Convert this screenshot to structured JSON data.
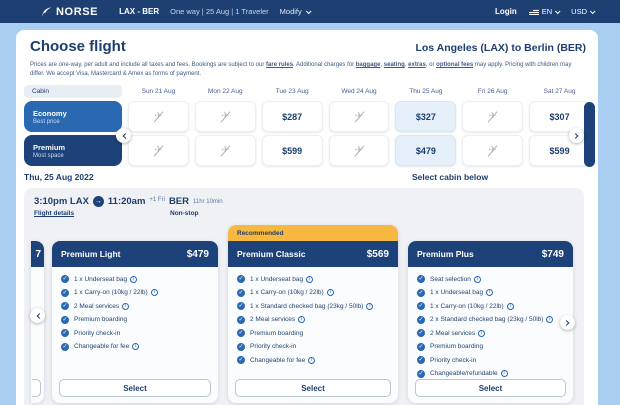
{
  "colors": {
    "navy": "#1e3f72",
    "header_navy": "#1c4279",
    "economy_blue": "#2a68b2",
    "page_blue": "#a9cef2",
    "selected_cell": "#e5f0fb",
    "recommended_yellow": "#f7b841",
    "container_gray": "#f0f1f4",
    "text_navy": "#1d3e6f"
  },
  "icons": {
    "plane": "✈",
    "arrow": "→",
    "check": "✓",
    "info": "i",
    "brand": "norse-bird"
  },
  "navbar": {
    "brand": "NORSE",
    "route": "LAX - BER",
    "trip_summary": "One way | 25 Aug | 1 Traveler",
    "modify_label": "Modify",
    "login_label": "Login",
    "language": "EN",
    "currency": "USD"
  },
  "header": {
    "title": "Choose flight",
    "route_title": "Los Angeles (LAX) to Berlin (BER)",
    "disclaimer": [
      {
        "t": "Prices are one-way, per adult and include all taxes and fees. Bookings are subject to our ",
        "link": false
      },
      {
        "t": "fare rules",
        "link": true
      },
      {
        "t": ". Additional charges for ",
        "link": false
      },
      {
        "t": "baggage",
        "link": true
      },
      {
        "t": ", ",
        "link": false
      },
      {
        "t": "seating",
        "link": true
      },
      {
        "t": ", ",
        "link": false
      },
      {
        "t": "extras",
        "link": true
      },
      {
        "t": ", or ",
        "link": false
      },
      {
        "t": "optional fees",
        "link": true
      },
      {
        "t": " may apply. Pricing with children may differ. We accept Visa, Mastercard & Amex as forms of payment.",
        "link": false
      }
    ]
  },
  "calendar": {
    "cabin_header": "Cabin",
    "days": [
      "Sun 21 Aug",
      "Mon 22 Aug",
      "Tue 23 Aug",
      "Wed 24 Aug",
      "Thu 25 Aug",
      "Fri 26 Aug",
      "Sat 27 Aug"
    ],
    "rows": [
      {
        "cabin": "Economy",
        "subtitle": "Best price",
        "cells": [
          null,
          null,
          "$287",
          null,
          "$327",
          null,
          "$307"
        ],
        "selected_index": 4
      },
      {
        "cabin": "Premium",
        "subtitle": "Most space",
        "cells": [
          null,
          null,
          "$599",
          null,
          "$479",
          null,
          "$599"
        ],
        "selected_index": 4
      }
    ]
  },
  "selection": {
    "date_heading": "Thu, 25 Aug 2022",
    "select_cabin_label": "Select cabin below"
  },
  "flight": {
    "depart": "3:10pm LAX",
    "arrive_time": "11:20am",
    "arrive_suffix": "+1 Fri",
    "arrive_airport": "BER",
    "duration": "11hr 10min",
    "details_link": "Flight details",
    "stops": "Non-stop"
  },
  "fares": {
    "recommended_label": "Recommended",
    "select_label": "Select",
    "partial_price": "7",
    "cards": [
      {
        "name": "Premium Light",
        "price": "$479",
        "recommended": false,
        "features": [
          {
            "text": "1 x Underseat bag",
            "info": true
          },
          {
            "text": "1 x Carry-on (10kg / 22lb)",
            "info": true
          },
          {
            "text": "2 Meal services",
            "info": true
          },
          {
            "text": "Premium boarding",
            "info": false
          },
          {
            "text": "Priority check-in",
            "info": false
          },
          {
            "text": "Changeable for fee",
            "info": true
          }
        ]
      },
      {
        "name": "Premium Classic",
        "price": "$569",
        "recommended": true,
        "features": [
          {
            "text": "1 x Underseat bag",
            "info": true
          },
          {
            "text": "1 x Carry-on (10kg / 22lb)",
            "info": true
          },
          {
            "text": "1 x Standard checked bag (23kg / 50lb)",
            "info": true
          },
          {
            "text": "2 Meal services",
            "info": true
          },
          {
            "text": "Premium boarding",
            "info": false
          },
          {
            "text": "Priority check-in",
            "info": false
          },
          {
            "text": "Changeable for fee",
            "info": true
          }
        ]
      },
      {
        "name": "Premium Plus",
        "price": "$749",
        "recommended": false,
        "features": [
          {
            "text": "Seat selection",
            "info": true
          },
          {
            "text": "1 x Underseat bag",
            "info": true
          },
          {
            "text": "1 x Carry-on (10kg / 22lb)",
            "info": true
          },
          {
            "text": "2 x Standard checked bag (23kg / 50lb)",
            "info": true
          },
          {
            "text": "2 Meal services",
            "info": true
          },
          {
            "text": "Premium boarding",
            "info": false
          },
          {
            "text": "Priority check-in",
            "info": false
          },
          {
            "text": "Changeable/refundable",
            "info": true
          }
        ]
      }
    ]
  }
}
